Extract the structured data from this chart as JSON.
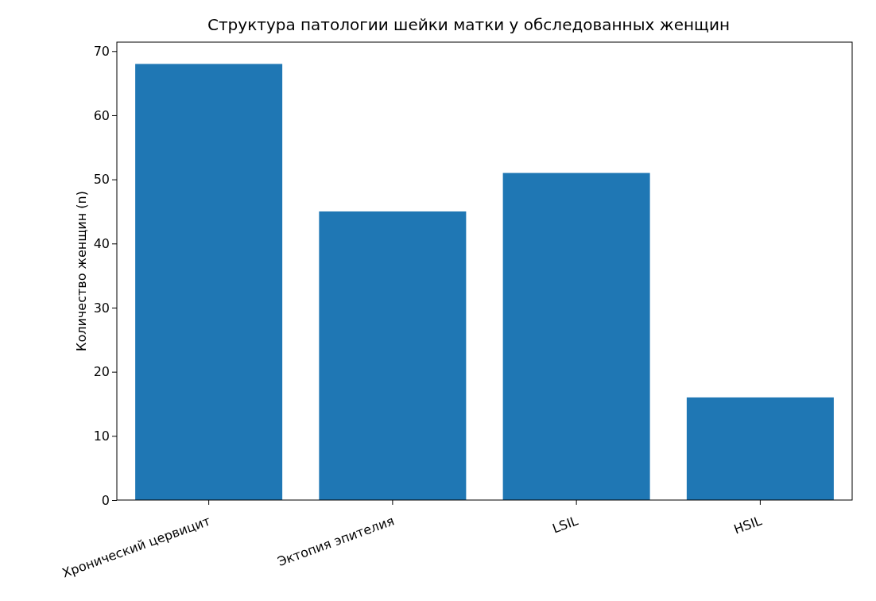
{
  "chart_data": {
    "type": "bar",
    "title": "Структура патологии шейки матки у обследованных женщин",
    "ylabel": "Количество женщин (n)",
    "categories": [
      "Хронический цервицит",
      "Эктопия эпителия",
      "LSIL",
      "HSIL"
    ],
    "values": [
      68,
      45,
      51,
      16
    ],
    "color": "#1f77b4",
    "ylim": [
      0,
      71.4
    ],
    "yticks": [
      0,
      10,
      20,
      30,
      40,
      50,
      60,
      70
    ],
    "grid": false
  }
}
